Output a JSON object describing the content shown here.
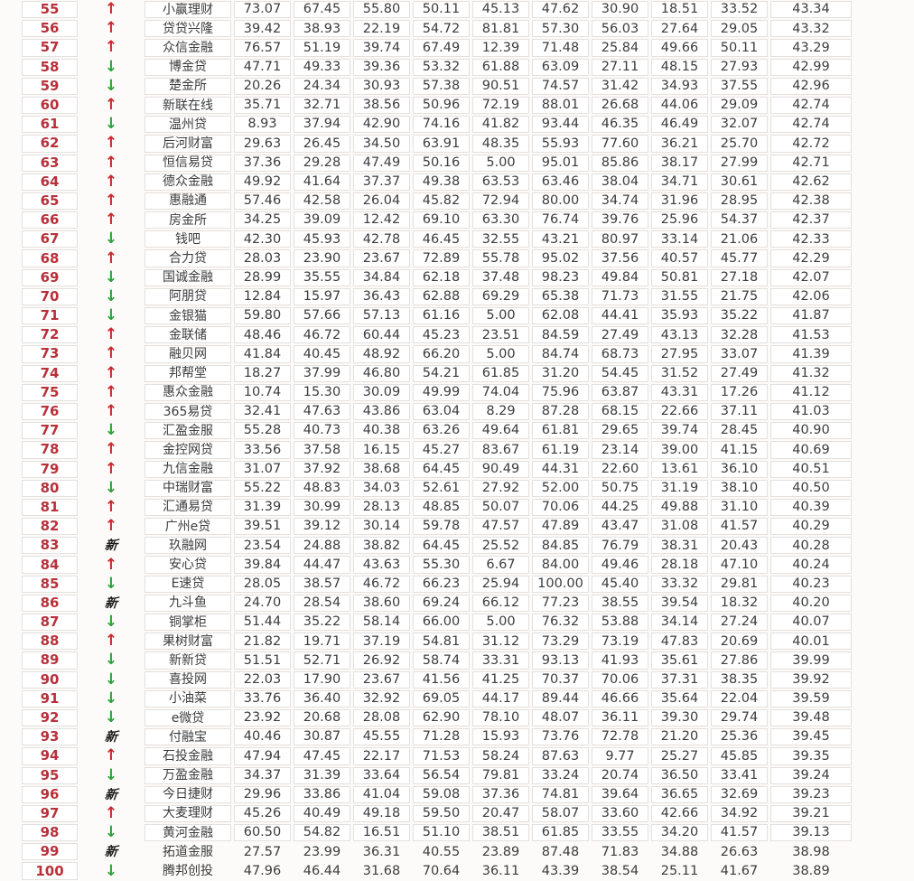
{
  "colors": {
    "page_background": "#fcfbfa",
    "cell_background": "#ffffff",
    "cell_border": "#e4e0dd",
    "rank_text": "#b8313a",
    "up_arrow": "#c9292b",
    "down_arrow": "#2da135",
    "new_badge": "#1d1d1d",
    "data_text": "#3c3c3c"
  },
  "trend_glyphs": {
    "up": "↑",
    "down": "↓",
    "new": "新"
  },
  "chart_data": {
    "type": "table",
    "visible_rank_range": [
      55,
      100
    ],
    "columns_visible": [
      "rank",
      "trend",
      "platform_name",
      "score1",
      "score2",
      "score3",
      "score4",
      "score5",
      "score6",
      "score7",
      "score8",
      "score9",
      "score10"
    ],
    "header_row_visible": false,
    "rows": [
      {
        "rank": "55",
        "trend": "up",
        "name": "小赢理财",
        "values": [
          "73.07",
          "67.45",
          "55.80",
          "50.11",
          "45.13",
          "47.62",
          "30.90",
          "18.51",
          "33.52",
          "43.34"
        ]
      },
      {
        "rank": "56",
        "trend": "up",
        "name": "贷贷兴隆",
        "values": [
          "39.42",
          "38.93",
          "22.19",
          "54.72",
          "81.81",
          "57.30",
          "56.03",
          "27.64",
          "29.05",
          "43.32"
        ]
      },
      {
        "rank": "57",
        "trend": "up",
        "name": "众信金融",
        "values": [
          "76.57",
          "51.19",
          "39.74",
          "67.49",
          "12.39",
          "71.48",
          "25.84",
          "49.66",
          "50.11",
          "43.29"
        ]
      },
      {
        "rank": "58",
        "trend": "down",
        "name": "博金贷",
        "values": [
          "47.71",
          "49.33",
          "39.36",
          "53.32",
          "61.88",
          "63.09",
          "27.11",
          "48.15",
          "27.93",
          "42.99"
        ]
      },
      {
        "rank": "59",
        "trend": "down",
        "name": "楚金所",
        "values": [
          "20.26",
          "24.34",
          "30.93",
          "57.38",
          "90.51",
          "74.57",
          "31.42",
          "34.93",
          "37.55",
          "42.96"
        ]
      },
      {
        "rank": "60",
        "trend": "up",
        "name": "新联在线",
        "values": [
          "35.71",
          "32.71",
          "38.56",
          "50.96",
          "72.19",
          "88.01",
          "26.68",
          "44.06",
          "29.09",
          "42.74"
        ]
      },
      {
        "rank": "61",
        "trend": "down",
        "name": "温州贷",
        "values": [
          "8.93",
          "37.94",
          "42.90",
          "74.16",
          "41.82",
          "93.44",
          "46.35",
          "46.49",
          "32.07",
          "42.74"
        ]
      },
      {
        "rank": "62",
        "trend": "up",
        "name": "后河财富",
        "values": [
          "29.63",
          "26.45",
          "34.50",
          "63.91",
          "48.35",
          "55.93",
          "77.60",
          "36.21",
          "25.70",
          "42.72"
        ]
      },
      {
        "rank": "63",
        "trend": "up",
        "name": "恒信易贷",
        "values": [
          "37.36",
          "29.28",
          "47.49",
          "50.16",
          "5.00",
          "95.01",
          "85.86",
          "38.17",
          "27.99",
          "42.71"
        ]
      },
      {
        "rank": "64",
        "trend": "up",
        "name": "德众金融",
        "values": [
          "49.92",
          "41.64",
          "37.37",
          "49.38",
          "63.53",
          "63.46",
          "38.04",
          "34.71",
          "30.61",
          "42.62"
        ]
      },
      {
        "rank": "65",
        "trend": "up",
        "name": "惠融通",
        "values": [
          "57.46",
          "42.58",
          "26.04",
          "45.82",
          "72.94",
          "80.00",
          "34.74",
          "31.96",
          "28.95",
          "42.38"
        ]
      },
      {
        "rank": "66",
        "trend": "up",
        "name": "房金所",
        "values": [
          "34.25",
          "39.09",
          "12.42",
          "69.10",
          "63.30",
          "76.74",
          "39.76",
          "25.96",
          "54.37",
          "42.37"
        ]
      },
      {
        "rank": "67",
        "trend": "down",
        "name": "钱吧",
        "values": [
          "42.30",
          "45.93",
          "42.78",
          "46.45",
          "32.55",
          "43.21",
          "80.97",
          "33.14",
          "21.06",
          "42.33"
        ]
      },
      {
        "rank": "68",
        "trend": "up",
        "name": "合力贷",
        "values": [
          "28.03",
          "23.90",
          "23.67",
          "72.89",
          "55.78",
          "95.02",
          "37.56",
          "40.57",
          "45.77",
          "42.29"
        ]
      },
      {
        "rank": "69",
        "trend": "down",
        "name": "国诚金融",
        "values": [
          "28.99",
          "35.55",
          "34.84",
          "62.18",
          "37.48",
          "98.23",
          "49.84",
          "50.81",
          "27.18",
          "42.07"
        ]
      },
      {
        "rank": "70",
        "trend": "down",
        "name": "阿朋贷",
        "values": [
          "12.84",
          "15.97",
          "36.43",
          "62.88",
          "69.29",
          "65.38",
          "71.73",
          "31.55",
          "21.75",
          "42.06"
        ]
      },
      {
        "rank": "71",
        "trend": "down",
        "name": "金银猫",
        "values": [
          "59.80",
          "57.66",
          "57.13",
          "61.16",
          "5.00",
          "62.08",
          "44.41",
          "35.93",
          "35.22",
          "41.87"
        ]
      },
      {
        "rank": "72",
        "trend": "up",
        "name": "金联储",
        "values": [
          "48.46",
          "46.72",
          "60.44",
          "45.23",
          "23.51",
          "84.59",
          "27.49",
          "43.13",
          "32.28",
          "41.53"
        ]
      },
      {
        "rank": "73",
        "trend": "up",
        "name": "融贝网",
        "values": [
          "41.84",
          "40.45",
          "48.92",
          "66.20",
          "5.00",
          "84.74",
          "68.73",
          "27.95",
          "33.07",
          "41.39"
        ]
      },
      {
        "rank": "74",
        "trend": "up",
        "name": "邦帮堂",
        "values": [
          "18.27",
          "37.99",
          "46.80",
          "54.21",
          "61.85",
          "31.20",
          "54.45",
          "31.52",
          "27.49",
          "41.32"
        ]
      },
      {
        "rank": "75",
        "trend": "up",
        "name": "惠众金融",
        "values": [
          "10.74",
          "15.30",
          "30.09",
          "49.99",
          "74.04",
          "75.96",
          "63.87",
          "43.31",
          "17.26",
          "41.12"
        ]
      },
      {
        "rank": "76",
        "trend": "up",
        "name": "365易贷",
        "values": [
          "32.41",
          "47.63",
          "43.86",
          "63.04",
          "8.29",
          "87.28",
          "68.15",
          "22.66",
          "37.11",
          "41.03"
        ]
      },
      {
        "rank": "77",
        "trend": "down",
        "name": "汇盈金服",
        "values": [
          "55.28",
          "40.73",
          "40.38",
          "63.26",
          "49.64",
          "61.81",
          "29.65",
          "39.74",
          "28.45",
          "40.90"
        ]
      },
      {
        "rank": "78",
        "trend": "up",
        "name": "金控网贷",
        "values": [
          "33.56",
          "37.58",
          "16.15",
          "45.27",
          "83.67",
          "61.19",
          "23.14",
          "39.00",
          "41.15",
          "40.69"
        ]
      },
      {
        "rank": "79",
        "trend": "up",
        "name": "九信金融",
        "values": [
          "31.07",
          "37.92",
          "38.68",
          "64.45",
          "90.49",
          "44.31",
          "22.60",
          "13.61",
          "36.10",
          "40.51"
        ]
      },
      {
        "rank": "80",
        "trend": "down",
        "name": "中瑞财富",
        "values": [
          "55.22",
          "48.83",
          "34.03",
          "52.61",
          "27.92",
          "52.00",
          "50.75",
          "31.19",
          "38.10",
          "40.50"
        ]
      },
      {
        "rank": "81",
        "trend": "up",
        "name": "汇通易贷",
        "values": [
          "31.39",
          "30.99",
          "28.13",
          "48.85",
          "50.07",
          "70.06",
          "44.25",
          "49.88",
          "31.10",
          "40.39"
        ]
      },
      {
        "rank": "82",
        "trend": "up",
        "name": "广州e贷",
        "values": [
          "39.51",
          "39.12",
          "30.14",
          "59.78",
          "47.57",
          "47.89",
          "43.47",
          "31.08",
          "41.57",
          "40.29"
        ]
      },
      {
        "rank": "83",
        "trend": "new",
        "name": "玖融网",
        "values": [
          "23.54",
          "24.88",
          "38.82",
          "64.45",
          "25.52",
          "84.85",
          "76.79",
          "38.31",
          "20.43",
          "40.28"
        ]
      },
      {
        "rank": "84",
        "trend": "up",
        "name": "安心贷",
        "values": [
          "39.84",
          "44.47",
          "43.63",
          "55.30",
          "6.67",
          "84.00",
          "49.46",
          "28.18",
          "47.10",
          "40.24"
        ]
      },
      {
        "rank": "85",
        "trend": "down",
        "name": "E速贷",
        "values": [
          "28.05",
          "38.57",
          "46.72",
          "66.23",
          "25.94",
          "100.00",
          "45.40",
          "33.32",
          "29.81",
          "40.23"
        ]
      },
      {
        "rank": "86",
        "trend": "new",
        "name": "九斗鱼",
        "values": [
          "24.70",
          "28.54",
          "38.60",
          "69.24",
          "66.12",
          "77.23",
          "38.55",
          "39.54",
          "18.32",
          "40.20"
        ]
      },
      {
        "rank": "87",
        "trend": "down",
        "name": "铜掌柜",
        "values": [
          "51.44",
          "35.22",
          "58.14",
          "66.00",
          "5.00",
          "76.32",
          "53.88",
          "34.14",
          "27.24",
          "40.07"
        ]
      },
      {
        "rank": "88",
        "trend": "up",
        "name": "果树财富",
        "values": [
          "21.82",
          "19.71",
          "37.19",
          "54.81",
          "31.12",
          "73.29",
          "73.19",
          "47.83",
          "20.69",
          "40.01"
        ]
      },
      {
        "rank": "89",
        "trend": "down",
        "name": "新新贷",
        "values": [
          "51.51",
          "52.71",
          "26.92",
          "58.74",
          "33.31",
          "93.13",
          "41.93",
          "35.61",
          "27.86",
          "39.99"
        ]
      },
      {
        "rank": "90",
        "trend": "down",
        "name": "喜投网",
        "values": [
          "22.03",
          "17.90",
          "23.67",
          "41.56",
          "41.25",
          "70.37",
          "70.06",
          "37.31",
          "38.35",
          "39.92"
        ]
      },
      {
        "rank": "91",
        "trend": "down",
        "name": "小油菜",
        "values": [
          "33.76",
          "36.40",
          "32.92",
          "69.05",
          "44.17",
          "89.44",
          "46.66",
          "35.64",
          "22.04",
          "39.59"
        ]
      },
      {
        "rank": "92",
        "trend": "down",
        "name": "e微贷",
        "values": [
          "23.92",
          "20.68",
          "28.08",
          "62.90",
          "78.10",
          "48.07",
          "36.11",
          "39.30",
          "29.74",
          "39.48"
        ]
      },
      {
        "rank": "93",
        "trend": "new",
        "name": "付融宝",
        "values": [
          "40.46",
          "30.87",
          "45.55",
          "71.28",
          "15.93",
          "73.76",
          "72.78",
          "21.20",
          "25.36",
          "39.45"
        ]
      },
      {
        "rank": "94",
        "trend": "up",
        "name": "石投金融",
        "values": [
          "47.94",
          "47.45",
          "22.17",
          "71.53",
          "58.24",
          "87.63",
          "9.77",
          "25.27",
          "45.85",
          "39.35"
        ]
      },
      {
        "rank": "95",
        "trend": "down",
        "name": "万盈金融",
        "values": [
          "34.37",
          "31.39",
          "33.64",
          "56.54",
          "79.81",
          "33.24",
          "20.74",
          "36.50",
          "33.41",
          "39.24"
        ]
      },
      {
        "rank": "96",
        "trend": "new",
        "name": "今日捷财",
        "values": [
          "29.96",
          "33.86",
          "41.04",
          "59.08",
          "37.36",
          "74.81",
          "39.64",
          "36.65",
          "32.69",
          "39.23"
        ]
      },
      {
        "rank": "97",
        "trend": "up",
        "name": "大麦理财",
        "values": [
          "45.26",
          "40.49",
          "49.18",
          "59.50",
          "20.47",
          "58.07",
          "33.60",
          "42.66",
          "34.92",
          "39.21"
        ]
      },
      {
        "rank": "98",
        "trend": "down",
        "name": "黄河金融",
        "values": [
          "60.50",
          "54.82",
          "16.51",
          "51.10",
          "38.51",
          "61.85",
          "33.55",
          "34.20",
          "41.57",
          "39.13"
        ]
      },
      {
        "rank": "99",
        "trend": "new",
        "name": "拓道金服",
        "values": [
          "27.57",
          "23.99",
          "36.31",
          "40.55",
          "23.89",
          "87.48",
          "71.83",
          "34.88",
          "26.63",
          "38.98"
        ]
      },
      {
        "rank": "100",
        "trend": "down",
        "name": "腾邦创投",
        "values": [
          "47.96",
          "46.44",
          "31.68",
          "70.64",
          "36.11",
          "43.39",
          "38.54",
          "25.11",
          "41.67",
          "38.89"
        ]
      }
    ]
  }
}
